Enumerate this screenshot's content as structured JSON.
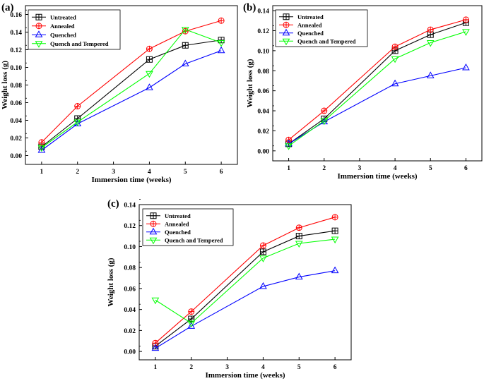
{
  "chart_data": [
    {
      "type": "line",
      "panel_label": "(a)",
      "xlabel": "Immersion time (weeks)",
      "ylabel": "Weight loss (g)",
      "x": [
        1,
        2,
        3,
        4,
        5,
        6
      ],
      "x_ticks": [
        "1",
        "2",
        "3",
        "4",
        "5",
        "6"
      ],
      "ylim": [
        -0.01,
        0.17
      ],
      "y_ticks": [
        "0.00",
        "0.02",
        "0.04",
        "0.06",
        "0.08",
        "0.10",
        "0.12",
        "0.14",
        "0.16"
      ],
      "legend_position": "top-left",
      "series": [
        {
          "name": "Untreated",
          "color": "#000000",
          "marker": "square",
          "x": [
            1,
            2,
            4,
            5,
            6
          ],
          "values": [
            0.01,
            0.042,
            0.109,
            0.125,
            0.131
          ]
        },
        {
          "name": "Annealed",
          "color": "#ff0000",
          "marker": "circle",
          "x": [
            1,
            2,
            4,
            5,
            6
          ],
          "values": [
            0.015,
            0.056,
            0.121,
            0.141,
            0.153
          ]
        },
        {
          "name": "Quenched",
          "color": "#0000ff",
          "marker": "triangle-up",
          "x": [
            1,
            2,
            4,
            5,
            6
          ],
          "values": [
            0.006,
            0.036,
            0.077,
            0.104,
            0.119
          ]
        },
        {
          "name": "Quench and Tempered",
          "color": "#00ff00",
          "marker": "triangle-down",
          "x": [
            1,
            2,
            4,
            5,
            6
          ],
          "values": [
            0.009,
            0.038,
            0.093,
            0.143,
            0.128
          ]
        }
      ]
    },
    {
      "type": "line",
      "panel_label": "(b)",
      "xlabel": "Immersion time (weeks)",
      "ylabel": "Weight loss (g)",
      "x": [
        1,
        2,
        3,
        4,
        5,
        6
      ],
      "x_ticks": [
        "1",
        "2",
        "3",
        "4",
        "5",
        "6"
      ],
      "ylim": [
        -0.01,
        0.145
      ],
      "y_ticks": [
        "0.00",
        "0.02",
        "0.04",
        "0.06",
        "0.08",
        "0.10",
        "0.12",
        "0.14"
      ],
      "legend_position": "top-left",
      "series": [
        {
          "name": "Untreated",
          "color": "#000000",
          "marker": "square",
          "x": [
            1,
            2,
            4,
            5,
            6
          ],
          "values": [
            0.007,
            0.032,
            0.1,
            0.116,
            0.128
          ]
        },
        {
          "name": "Annealed",
          "color": "#ff0000",
          "marker": "circle",
          "x": [
            1,
            2,
            4,
            5,
            6
          ],
          "values": [
            0.011,
            0.04,
            0.104,
            0.121,
            0.131
          ]
        },
        {
          "name": "Quenched",
          "color": "#0000ff",
          "marker": "triangle-up",
          "x": [
            1,
            2,
            4,
            5,
            6
          ],
          "values": [
            0.007,
            0.029,
            0.067,
            0.075,
            0.083
          ]
        },
        {
          "name": "Quench and Tempered",
          "color": "#00ff00",
          "marker": "triangle-down",
          "x": [
            1,
            2,
            4,
            5,
            6
          ],
          "values": [
            0.005,
            0.03,
            0.092,
            0.108,
            0.119
          ]
        }
      ]
    },
    {
      "type": "line",
      "panel_label": "(c)",
      "xlabel": "Immersion time (weeks)",
      "ylabel": "Weight loss (g)",
      "x": [
        1,
        2,
        3,
        4,
        5,
        6
      ],
      "x_ticks": [
        "1",
        "2",
        "3",
        "4",
        "5",
        "6"
      ],
      "ylim": [
        -0.008,
        0.14
      ],
      "y_ticks": [
        "0.00",
        "0.02",
        "0.04",
        "0.06",
        "0.08",
        "0.10",
        "0.12",
        "0.14"
      ],
      "legend_position": "top-left",
      "series": [
        {
          "name": "Untreated",
          "color": "#000000",
          "marker": "square",
          "x": [
            1,
            2,
            4,
            5,
            6
          ],
          "values": [
            0.005,
            0.031,
            0.095,
            0.11,
            0.115
          ]
        },
        {
          "name": "Annealed",
          "color": "#ff0000",
          "marker": "circle",
          "x": [
            1,
            2,
            4,
            5,
            6
          ],
          "values": [
            0.008,
            0.038,
            0.101,
            0.118,
            0.128
          ]
        },
        {
          "name": "Quenched",
          "color": "#0000ff",
          "marker": "triangle-up",
          "x": [
            1,
            2,
            4,
            5,
            6
          ],
          "values": [
            0.003,
            0.024,
            0.062,
            0.071,
            0.077
          ]
        },
        {
          "name": "Quench and Tempered",
          "color": "#00ff00",
          "marker": "triangle-down",
          "x": [
            1,
            2,
            4,
            5,
            6
          ],
          "values": [
            0.049,
            0.027,
            0.089,
            0.103,
            0.107
          ]
        }
      ]
    }
  ]
}
